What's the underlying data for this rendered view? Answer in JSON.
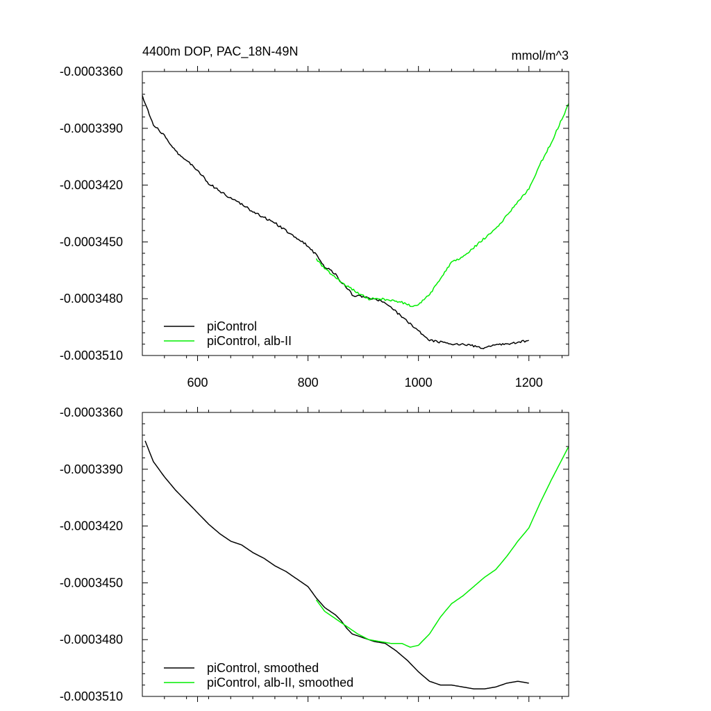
{
  "figure": {
    "title_left": "4400m DOP, PAC_18N-49N",
    "title_right": "mmol/m^3"
  },
  "colors": {
    "picontrol": "#000000",
    "alb": "#00ee00",
    "axis": "#000000"
  },
  "chart_data": [
    {
      "type": "line",
      "panel": "top",
      "title": "4400m DOP, PAC_18N-49N",
      "units": "mmol/m^3",
      "xlabel": "",
      "ylabel": "",
      "xlim": [
        500,
        1272
      ],
      "ylim": [
        -0.000351,
        -0.000336
      ],
      "x_ticks": [
        600,
        800,
        1000,
        1200
      ],
      "x_tick_labels": [
        "600",
        "800",
        "1000",
        "1200"
      ],
      "y_ticks": [
        -0.000336,
        -0.000339,
        -0.000342,
        -0.000345,
        -0.000348,
        -0.000351
      ],
      "y_tick_labels": [
        "-0.0003360",
        "-0.0003390",
        "-0.0003420",
        "-0.0003450",
        "-0.0003480",
        "-0.0003510"
      ],
      "grid": false,
      "legend_position": "bottom-left",
      "series": [
        {
          "name": "piControl",
          "color": "#000000",
          "noisy": true,
          "x": [
            500,
            520,
            540,
            560,
            580,
            600,
            620,
            640,
            660,
            680,
            700,
            720,
            740,
            760,
            780,
            800,
            815,
            830,
            850,
            860,
            870,
            880,
            900,
            920,
            940,
            960,
            980,
            1000,
            1020,
            1040,
            1060,
            1080,
            1100,
            1120,
            1140,
            1160,
            1180,
            1200
          ],
          "y": [
            -0.0003373,
            -0.0003388,
            -0.0003394,
            -0.0003402,
            -0.0003407,
            -0.0003412,
            -0.0003419,
            -0.0003423,
            -0.0003427,
            -0.000343,
            -0.0003434,
            -0.0003437,
            -0.000344,
            -0.0003444,
            -0.0003448,
            -0.0003452,
            -0.0003457,
            -0.0003463,
            -0.0003467,
            -0.0003471,
            -0.0003474,
            -0.0003478,
            -0.0003479,
            -0.000348,
            -0.0003482,
            -0.0003487,
            -0.0003492,
            -0.0003497,
            -0.0003502,
            -0.0003503,
            -0.0003504,
            -0.0003504,
            -0.0003505,
            -0.0003506,
            -0.0003504,
            -0.0003504,
            -0.0003503,
            -0.0003502
          ]
        },
        {
          "name": "piControl, alb-II",
          "color": "#00ee00",
          "noisy": true,
          "x": [
            815,
            830,
            850,
            870,
            890,
            910,
            930,
            950,
            970,
            990,
            1000,
            1020,
            1040,
            1060,
            1080,
            1100,
            1120,
            1140,
            1160,
            1180,
            1200,
            1220,
            1240,
            1272
          ],
          "y": [
            -0.0003459,
            -0.0003464,
            -0.0003469,
            -0.0003473,
            -0.0003477,
            -0.000348,
            -0.000348,
            -0.0003481,
            -0.0003482,
            -0.0003484,
            -0.0003483,
            -0.0003478,
            -0.0003469,
            -0.0003461,
            -0.0003458,
            -0.0003453,
            -0.0003448,
            -0.0003443,
            -0.0003436,
            -0.0003429,
            -0.0003422,
            -0.0003409,
            -0.0003398,
            -0.0003377
          ]
        }
      ]
    },
    {
      "type": "line",
      "panel": "bottom",
      "xlabel": "",
      "ylabel": "",
      "xlim": [
        500,
        1272
      ],
      "ylim": [
        -0.000351,
        -0.000336
      ],
      "x_ticks": [
        600,
        800,
        1000,
        1200
      ],
      "y_ticks": [
        -0.000336,
        -0.000339,
        -0.000342,
        -0.000345,
        -0.000348,
        -0.000351
      ],
      "y_tick_labels": [
        "-0.0003360",
        "-0.0003390",
        "-0.0003420",
        "-0.0003450",
        "-0.0003480",
        "-0.0003510"
      ],
      "grid": false,
      "legend_position": "bottom-left",
      "series": [
        {
          "name": "piControl, smoothed",
          "color": "#000000",
          "noisy": false,
          "x": [
            505,
            520,
            540,
            560,
            580,
            600,
            620,
            640,
            660,
            680,
            700,
            720,
            740,
            760,
            780,
            800,
            815,
            830,
            850,
            860,
            870,
            880,
            900,
            920,
            940,
            960,
            980,
            1000,
            1020,
            1040,
            1060,
            1080,
            1100,
            1120,
            1140,
            1160,
            1180,
            1200
          ],
          "y": [
            -0.0003375,
            -0.0003386,
            -0.0003394,
            -0.0003401,
            -0.0003407,
            -0.0003413,
            -0.0003419,
            -0.0003424,
            -0.0003428,
            -0.000343,
            -0.0003434,
            -0.0003437,
            -0.0003441,
            -0.0003444,
            -0.0003448,
            -0.0003452,
            -0.0003458,
            -0.0003463,
            -0.0003467,
            -0.000347,
            -0.0003474,
            -0.0003477,
            -0.0003479,
            -0.0003481,
            -0.0003482,
            -0.0003486,
            -0.0003491,
            -0.0003497,
            -0.0003502,
            -0.0003504,
            -0.0003504,
            -0.0003505,
            -0.0003506,
            -0.0003506,
            -0.0003505,
            -0.0003503,
            -0.0003502,
            -0.0003503
          ]
        },
        {
          "name": "piControl, alb-II, smoothed",
          "color": "#00ee00",
          "noisy": false,
          "x": [
            815,
            830,
            850,
            870,
            890,
            910,
            930,
            950,
            970,
            985,
            1000,
            1020,
            1040,
            1060,
            1080,
            1100,
            1120,
            1140,
            1160,
            1180,
            1200,
            1220,
            1240,
            1272
          ],
          "y": [
            -0.0003459,
            -0.0003465,
            -0.0003469,
            -0.0003473,
            -0.0003477,
            -0.000348,
            -0.0003481,
            -0.0003482,
            -0.0003482,
            -0.0003484,
            -0.0003483,
            -0.0003477,
            -0.0003468,
            -0.0003461,
            -0.0003457,
            -0.0003452,
            -0.0003447,
            -0.0003443,
            -0.0003436,
            -0.0003428,
            -0.0003421,
            -0.0003408,
            -0.0003396,
            -0.0003378
          ]
        }
      ]
    }
  ]
}
